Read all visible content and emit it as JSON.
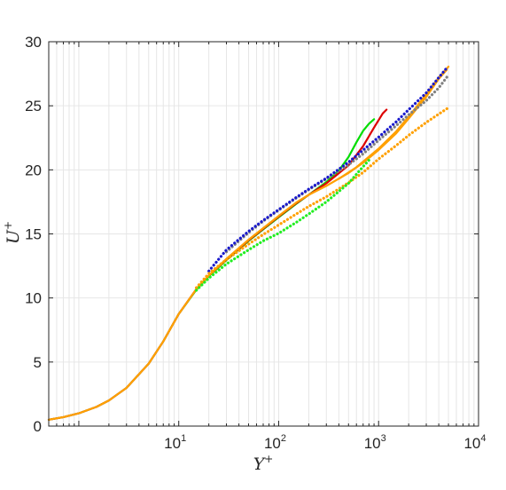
{
  "chart_data": {
    "type": "line",
    "title": "",
    "xlabel": "Y",
    "xlabel_sup": "+",
    "ylabel": "U",
    "ylabel_sup": "+",
    "xscale": "log",
    "xlim": [
      0.5,
      10000
    ],
    "ylim": [
      0,
      30
    ],
    "grid": true,
    "legend": "none",
    "xticks": [
      {
        "base": "10",
        "exp": "1",
        "value": 10
      },
      {
        "base": "10",
        "exp": "2",
        "value": 100
      },
      {
        "base": "10",
        "exp": "3",
        "value": 1000
      },
      {
        "base": "10",
        "exp": "4",
        "value": 10000
      }
    ],
    "yticks": [
      "0",
      "5",
      "10",
      "15",
      "20",
      "25",
      "30"
    ],
    "colors": {
      "green": "#00dd00",
      "red": "#dd0000",
      "orange": "#ffa000",
      "blue": "#1a1acc",
      "gray": "#808080",
      "lightgreen": "#22ee22",
      "axis": "#262626",
      "grid": "#e6e6e6"
    },
    "series": [
      {
        "color": "green",
        "style": "solid",
        "width": 2.2,
        "x": [
          0.5,
          0.7,
          1,
          1.5,
          2,
          3,
          5,
          7,
          10,
          15,
          20,
          30,
          50,
          70,
          100,
          150,
          200,
          300,
          400,
          500,
          600,
          700,
          800,
          900
        ],
        "y": [
          0.5,
          0.7,
          1,
          1.5,
          2,
          2.98,
          4.88,
          6.6,
          8.75,
          10.65,
          11.7,
          12.95,
          14.45,
          15.35,
          16.3,
          17.35,
          18.05,
          19.05,
          19.95,
          21.0,
          22.15,
          23.05,
          23.6,
          23.95
        ]
      },
      {
        "color": "red",
        "style": "solid",
        "width": 2.2,
        "x": [
          0.5,
          0.7,
          1,
          1.5,
          2,
          3,
          5,
          7,
          10,
          15,
          20,
          30,
          50,
          70,
          100,
          150,
          200,
          300,
          500,
          700,
          900,
          1100,
          1200
        ],
        "y": [
          0.5,
          0.7,
          1,
          1.5,
          2,
          2.98,
          4.88,
          6.6,
          8.75,
          10.7,
          11.75,
          13.0,
          14.5,
          15.4,
          16.35,
          17.4,
          18.05,
          18.95,
          20.35,
          21.85,
          23.3,
          24.4,
          24.7
        ]
      },
      {
        "color": "orange",
        "style": "solid",
        "width": 2.2,
        "x": [
          0.5,
          0.7,
          1,
          1.5,
          2,
          3,
          5,
          7,
          10,
          15,
          20,
          30,
          50,
          70,
          100,
          150,
          200,
          300,
          500,
          700,
          1000,
          1500,
          2000,
          3000,
          4000,
          4800
        ],
        "y": [
          0.5,
          0.7,
          1,
          1.5,
          2,
          2.98,
          4.88,
          6.6,
          8.75,
          10.7,
          11.75,
          13.05,
          14.55,
          15.45,
          16.4,
          17.45,
          18.05,
          18.75,
          19.75,
          20.55,
          21.55,
          22.85,
          24.0,
          25.7,
          27.1,
          27.8
        ]
      },
      {
        "color": "orange",
        "style": "solid",
        "width": 2.2,
        "x": [
          400,
          600,
          1000,
          1500,
          2000,
          3000,
          4000,
          5000
        ],
        "y": [
          19.3,
          20.2,
          21.65,
          23.0,
          24.15,
          25.9,
          27.2,
          28.05
        ]
      },
      {
        "color": "gray",
        "style": "dotted",
        "width": 3.2,
        "x": [
          30,
          50,
          70,
          100,
          150,
          200,
          300,
          500,
          700,
          1000,
          1500,
          2000,
          3000,
          4000,
          5000
        ],
        "y": [
          13.6,
          15.1,
          16.0,
          16.85,
          17.8,
          18.45,
          19.3,
          20.4,
          21.25,
          22.3,
          23.45,
          24.3,
          25.4,
          26.4,
          27.4
        ]
      },
      {
        "color": "blue",
        "style": "dotted",
        "width": 3.2,
        "x": [
          20,
          30,
          50,
          70,
          100,
          150,
          200,
          300,
          500,
          700,
          1000,
          1500,
          2000,
          3000,
          4000,
          4800
        ],
        "y": [
          12.1,
          13.75,
          15.2,
          16.05,
          16.9,
          17.85,
          18.5,
          19.35,
          20.6,
          21.55,
          22.55,
          23.75,
          24.7,
          26.0,
          27.2,
          27.95
        ]
      },
      {
        "color": "orange",
        "style": "dotted",
        "width": 3.2,
        "x": [
          15,
          20,
          30,
          50,
          70,
          100,
          150,
          200,
          300,
          500,
          700,
          1000,
          1500,
          2000,
          3000,
          4000,
          5000
        ],
        "y": [
          10.8,
          11.9,
          13.0,
          14.2,
          14.95,
          15.7,
          16.55,
          17.15,
          17.9,
          19.0,
          19.8,
          20.85,
          21.9,
          22.7,
          23.7,
          24.35,
          24.85
        ]
      },
      {
        "color": "lightgreen",
        "style": "dotted",
        "width": 3.2,
        "x": [
          15,
          20,
          30,
          50,
          70,
          100,
          150,
          200,
          300,
          500,
          700,
          800
        ],
        "y": [
          10.6,
          11.55,
          12.65,
          13.75,
          14.45,
          15.05,
          15.9,
          16.55,
          17.5,
          18.95,
          20.25,
          20.75
        ]
      }
    ]
  }
}
